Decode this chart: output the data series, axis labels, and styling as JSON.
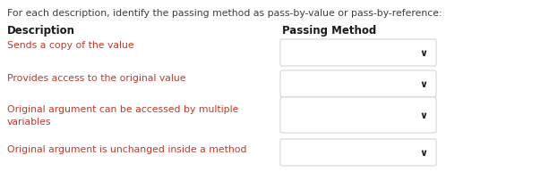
{
  "bg_color": "#ffffff",
  "header_text": "For each description, identify the passing method as pass-by-value or pass-by-reference:",
  "header_color": "#3d3d3d",
  "col1_header": "Description",
  "col2_header": "Passing Method",
  "col_header_color": "#1a1a1a",
  "rows": [
    {
      "desc": "Sends a copy of the value"
    },
    {
      "desc": "Provides access to the original value"
    },
    {
      "desc": "Original argument can be accessed by multiple\nvariables"
    },
    {
      "desc": "Original argument is unchanged inside a method"
    }
  ],
  "desc_color": "#c0392b",
  "box_edge_color": "#d0d0d0",
  "box_face_color": "#ffffff",
  "dropdown_color": "#222222",
  "desc_fontsize": 7.8,
  "header_fontsize": 7.8,
  "col_header_fontsize": 8.5
}
